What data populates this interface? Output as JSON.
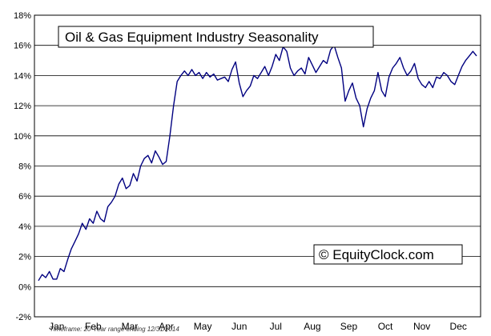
{
  "chart_data": {
    "type": "line",
    "title": "Oil & Gas Equipment Industry Seasonality",
    "watermark": "© EquityClock.com",
    "footnote": "Timeframe: 20-Year range ending 12/31/2014",
    "xlabel": "",
    "ylabel": "",
    "ylim": [
      -2,
      18
    ],
    "yticks": [
      "-2%",
      "0%",
      "2%",
      "4%",
      "6%",
      "8%",
      "10%",
      "12%",
      "14%",
      "16%",
      "18%"
    ],
    "ytick_values": [
      -2,
      0,
      2,
      4,
      6,
      8,
      10,
      12,
      14,
      16,
      18
    ],
    "categories": [
      "Jan",
      "Feb",
      "Mar",
      "Apr",
      "May",
      "Jun",
      "Jul",
      "Aug",
      "Sep",
      "Oct",
      "Nov",
      "Dec"
    ],
    "grid": "horizontal",
    "line_color": "#000080",
    "series": [
      {
        "values": [
          [
            0.0,
            0.4
          ],
          [
            0.1,
            0.8
          ],
          [
            0.2,
            0.6
          ],
          [
            0.3,
            1.0
          ],
          [
            0.4,
            0.5
          ],
          [
            0.5,
            0.5
          ],
          [
            0.6,
            1.2
          ],
          [
            0.7,
            1.0
          ],
          [
            0.8,
            1.8
          ],
          [
            0.9,
            2.5
          ],
          [
            1.0,
            3.0
          ],
          [
            1.1,
            3.5
          ],
          [
            1.2,
            4.2
          ],
          [
            1.3,
            3.8
          ],
          [
            1.4,
            4.5
          ],
          [
            1.5,
            4.2
          ],
          [
            1.6,
            5.0
          ],
          [
            1.7,
            4.5
          ],
          [
            1.8,
            4.3
          ],
          [
            1.9,
            5.3
          ],
          [
            2.0,
            5.6
          ],
          [
            2.1,
            6.0
          ],
          [
            2.2,
            6.8
          ],
          [
            2.3,
            7.2
          ],
          [
            2.4,
            6.5
          ],
          [
            2.5,
            6.7
          ],
          [
            2.6,
            7.5
          ],
          [
            2.7,
            7.0
          ],
          [
            2.8,
            8.0
          ],
          [
            2.9,
            8.5
          ],
          [
            3.0,
            8.7
          ],
          [
            3.1,
            8.2
          ],
          [
            3.2,
            9.0
          ],
          [
            3.3,
            8.6
          ],
          [
            3.4,
            8.1
          ],
          [
            3.5,
            8.3
          ],
          [
            3.6,
            10.0
          ],
          [
            3.7,
            12.0
          ],
          [
            3.8,
            13.6
          ],
          [
            3.9,
            14.0
          ],
          [
            4.0,
            14.3
          ],
          [
            4.1,
            14.0
          ],
          [
            4.2,
            14.4
          ],
          [
            4.3,
            14.0
          ],
          [
            4.4,
            14.2
          ],
          [
            4.5,
            13.8
          ],
          [
            4.6,
            14.2
          ],
          [
            4.7,
            13.9
          ],
          [
            4.8,
            14.1
          ],
          [
            4.9,
            13.7
          ],
          [
            5.0,
            13.8
          ],
          [
            5.1,
            13.9
          ],
          [
            5.2,
            13.6
          ],
          [
            5.3,
            14.4
          ],
          [
            5.4,
            14.9
          ],
          [
            5.5,
            13.5
          ],
          [
            5.6,
            12.6
          ],
          [
            5.7,
            13.0
          ],
          [
            5.8,
            13.3
          ],
          [
            5.9,
            14.0
          ],
          [
            6.0,
            13.8
          ],
          [
            6.1,
            14.2
          ],
          [
            6.2,
            14.6
          ],
          [
            6.3,
            14.0
          ],
          [
            6.4,
            14.6
          ],
          [
            6.5,
            15.4
          ],
          [
            6.6,
            15.0
          ],
          [
            6.7,
            15.9
          ],
          [
            6.8,
            15.6
          ],
          [
            6.9,
            14.5
          ],
          [
            7.0,
            14.0
          ],
          [
            7.1,
            14.3
          ],
          [
            7.2,
            14.5
          ],
          [
            7.3,
            14.1
          ],
          [
            7.4,
            15.2
          ],
          [
            7.5,
            14.7
          ],
          [
            7.6,
            14.2
          ],
          [
            7.7,
            14.6
          ],
          [
            7.8,
            15.0
          ],
          [
            7.9,
            14.8
          ],
          [
            8.0,
            15.7
          ],
          [
            8.1,
            16.0
          ],
          [
            8.2,
            15.2
          ],
          [
            8.3,
            14.5
          ],
          [
            8.4,
            12.3
          ],
          [
            8.5,
            13.0
          ],
          [
            8.6,
            13.5
          ],
          [
            8.7,
            12.5
          ],
          [
            8.8,
            12.0
          ],
          [
            8.9,
            10.6
          ],
          [
            9.0,
            11.8
          ],
          [
            9.1,
            12.5
          ],
          [
            9.2,
            13.0
          ],
          [
            9.3,
            14.2
          ],
          [
            9.4,
            13.0
          ],
          [
            9.5,
            12.6
          ],
          [
            9.6,
            13.9
          ],
          [
            9.7,
            14.5
          ],
          [
            9.8,
            14.8
          ],
          [
            9.9,
            15.2
          ],
          [
            10.0,
            14.5
          ],
          [
            10.1,
            14.0
          ],
          [
            10.2,
            14.3
          ],
          [
            10.3,
            14.8
          ],
          [
            10.4,
            13.8
          ],
          [
            10.5,
            13.4
          ],
          [
            10.6,
            13.2
          ],
          [
            10.7,
            13.6
          ],
          [
            10.8,
            13.2
          ],
          [
            10.9,
            13.9
          ],
          [
            11.0,
            13.8
          ],
          [
            11.1,
            14.2
          ],
          [
            11.2,
            14.0
          ],
          [
            11.3,
            13.6
          ],
          [
            11.4,
            13.4
          ],
          [
            11.5,
            14.0
          ],
          [
            11.6,
            14.6
          ],
          [
            11.7,
            15.0
          ],
          [
            11.8,
            15.3
          ],
          [
            11.9,
            15.6
          ],
          [
            12.0,
            15.3
          ]
        ]
      }
    ]
  }
}
